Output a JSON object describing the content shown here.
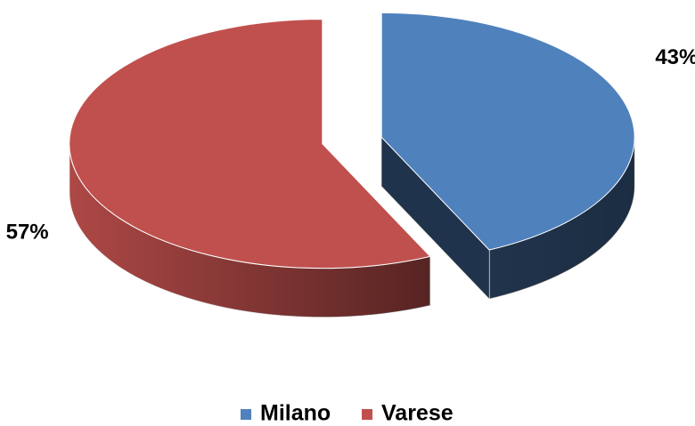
{
  "chart_data": {
    "type": "pie3d",
    "categories": [
      "Milano",
      "Varese"
    ],
    "values": [
      43,
      57
    ],
    "value_labels": [
      "43%",
      "57%"
    ],
    "colors": [
      "#4f81bd",
      "#c0504d"
    ],
    "legend": "bottom"
  }
}
